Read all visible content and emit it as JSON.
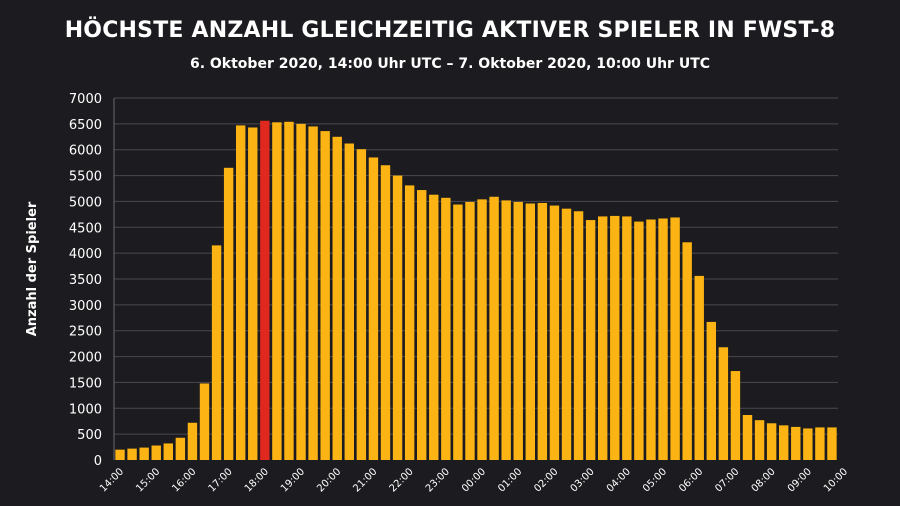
{
  "chart_data": {
    "type": "bar",
    "title": "HÖCHSTE ANZAHL GLEICHZEITIG AKTIVER SPIELER IN FWST-8",
    "subtitle": "6. Oktober 2020, 14:00 Uhr UTC – 7. Oktober 2020, 10:00 Uhr UTC",
    "ylabel": "Anzahl der Spieler",
    "xlabel": "",
    "ylim": [
      0,
      7000
    ],
    "yticks": [
      0,
      500,
      1000,
      1500,
      2000,
      2500,
      3000,
      3500,
      4000,
      4500,
      5000,
      5500,
      6000,
      6500,
      7000
    ],
    "xtick_labels": [
      "14:00",
      "15:00",
      "16:00",
      "17:00",
      "18:00",
      "19:00",
      "20:00",
      "21:00",
      "22:00",
      "23:00",
      "00:00",
      "01:00",
      "02:00",
      "03:00",
      "04:00",
      "05:00",
      "06:00",
      "07:00",
      "08:00",
      "09:00",
      "10:00"
    ],
    "bars_per_hour": 3,
    "grid": true,
    "bar_color": "#fbb413",
    "highlight_color": "#e0281e",
    "highlight_index": 12,
    "values": [
      200,
      220,
      240,
      280,
      320,
      430,
      720,
      1480,
      4150,
      5650,
      6470,
      6430,
      6560,
      6530,
      6540,
      6500,
      6450,
      6360,
      6250,
      6120,
      6010,
      5850,
      5700,
      5500,
      5310,
      5220,
      5130,
      5070,
      4940,
      4990,
      5040,
      5090,
      5020,
      4990,
      4960,
      4970,
      4920,
      4860,
      4810,
      4640,
      4710,
      4720,
      4710,
      4610,
      4650,
      4670,
      4690,
      4210,
      3560,
      2670,
      2180,
      1720,
      870,
      770,
      710,
      670,
      640,
      610,
      630,
      630
    ]
  }
}
